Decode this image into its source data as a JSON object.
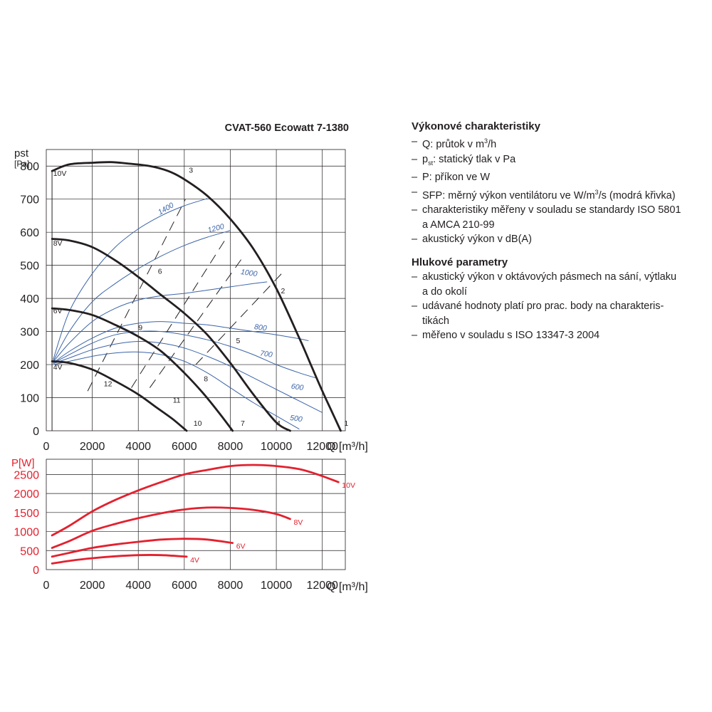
{
  "chart_data": [
    {
      "type": "line",
      "title": "CVAT-560 Ecowatt 7-1380",
      "ylabel": "pst",
      "yunit": "[Pa]",
      "xlabel": "Q [m³/h]",
      "xlim": [
        0,
        13000
      ],
      "ylim": [
        0,
        850
      ],
      "xticks": [
        0,
        2000,
        4000,
        6000,
        8000,
        10000,
        12000
      ],
      "yticks": [
        0,
        100,
        200,
        300,
        400,
        500,
        600,
        700,
        800
      ],
      "grid": true,
      "series": [
        {
          "name": "10V",
          "color": "#231f20",
          "x": [
            250,
            1000,
            2000,
            2800,
            3500,
            4500,
            5300,
            6000,
            7000,
            8000,
            9000,
            10000,
            11000,
            11500,
            12000,
            12400,
            12800
          ],
          "y": [
            785,
            805,
            810,
            812,
            808,
            800,
            785,
            760,
            710,
            640,
            550,
            430,
            280,
            200,
            120,
            60,
            0
          ]
        },
        {
          "name": "8V",
          "color": "#231f20",
          "x": [
            250,
            1000,
            2000,
            3000,
            4000,
            5000,
            6000,
            7000,
            8000,
            9000,
            10000,
            10600
          ],
          "y": [
            580,
            575,
            555,
            515,
            465,
            410,
            355,
            290,
            205,
            110,
            25,
            0
          ]
        },
        {
          "name": "6V",
          "color": "#231f20",
          "x": [
            250,
            1000,
            2000,
            3000,
            4000,
            5000,
            6000,
            6800,
            7500,
            8100
          ],
          "y": [
            370,
            365,
            350,
            320,
            285,
            240,
            175,
            115,
            55,
            0
          ]
        },
        {
          "name": "4V",
          "color": "#231f20",
          "x": [
            250,
            1000,
            2000,
            3000,
            4000,
            4800,
            5500,
            6100
          ],
          "y": [
            210,
            205,
            185,
            150,
            110,
            70,
            35,
            0
          ]
        }
      ],
      "curve_labels": [
        {
          "text": "10V",
          "x": 300,
          "y": 770
        },
        {
          "text": "8V",
          "x": 300,
          "y": 560
        },
        {
          "text": "6V",
          "x": 300,
          "y": 355
        },
        {
          "text": "4V",
          "x": 300,
          "y": 185
        },
        {
          "text": "1",
          "x": 12950,
          "y": 15
        },
        {
          "text": "2",
          "x": 10200,
          "y": 415
        },
        {
          "text": "3",
          "x": 6200,
          "y": 780
        },
        {
          "text": "4",
          "x": 10000,
          "y": 15
        },
        {
          "text": "5",
          "x": 8250,
          "y": 265
        },
        {
          "text": "6",
          "x": 4850,
          "y": 475
        },
        {
          "text": "7",
          "x": 8450,
          "y": 15
        },
        {
          "text": "8",
          "x": 6850,
          "y": 150
        },
        {
          "text": "9",
          "x": 4000,
          "y": 305
        },
        {
          "text": "10",
          "x": 6400,
          "y": 15
        },
        {
          "text": "11",
          "x": 5500,
          "y": 85
        },
        {
          "text": "12",
          "x": 2500,
          "y": 135
        }
      ],
      "sfp_series": [
        {
          "name": "1400",
          "color": "#3b64a8",
          "x": [
            300,
            1000,
            2000,
            3000,
            4000,
            5000,
            6000,
            7000
          ],
          "y": [
            215,
            360,
            475,
            555,
            610,
            650,
            680,
            702
          ]
        },
        {
          "name": "1200",
          "color": "#3b64a8",
          "x": [
            300,
            1000,
            2000,
            3000,
            4000,
            5000,
            6000,
            7000,
            8000
          ],
          "y": [
            210,
            300,
            390,
            445,
            490,
            528,
            560,
            585,
            605
          ]
        },
        {
          "name": "1000",
          "color": "#3b64a8",
          "x": [
            300,
            1000,
            2000,
            3000,
            4000,
            5000,
            6000,
            7000,
            8000,
            9000,
            9600
          ],
          "y": [
            208,
            265,
            330,
            370,
            395,
            408,
            415,
            425,
            435,
            445,
            450
          ]
        },
        {
          "name": "800",
          "color": "#3b64a8",
          "x": [
            300,
            1000,
            2000,
            3000,
            4000,
            5000,
            6000,
            7000,
            8000,
            9000,
            10000,
            11000,
            11400
          ],
          "y": [
            205,
            240,
            280,
            310,
            325,
            330,
            325,
            320,
            310,
            300,
            290,
            278,
            272
          ]
        },
        {
          "name": "700",
          "color": "#3b64a8",
          "x": [
            300,
            1000,
            2000,
            3000,
            4000,
            5000,
            6000,
            7000,
            8000,
            9000,
            10000,
            11000,
            11700
          ],
          "y": [
            205,
            230,
            265,
            290,
            300,
            300,
            290,
            275,
            255,
            230,
            200,
            175,
            160
          ]
        },
        {
          "name": "600",
          "color": "#3b64a8",
          "x": [
            300,
            1000,
            2000,
            3000,
            4000,
            5000,
            6000,
            7000,
            8000,
            9000,
            10000,
            11000,
            12000
          ],
          "y": [
            203,
            220,
            245,
            262,
            270,
            265,
            250,
            225,
            195,
            160,
            125,
            90,
            55
          ]
        },
        {
          "name": "500",
          "color": "#3b64a8",
          "x": [
            300,
            1000,
            2000,
            3000,
            4000,
            5000,
            6000,
            7000,
            8000,
            9000,
            10000,
            11000
          ],
          "y": [
            200,
            210,
            225,
            235,
            238,
            230,
            210,
            175,
            130,
            85,
            45,
            5
          ]
        }
      ],
      "sfp_labels": [
        {
          "text": "1400",
          "x": 5250,
          "y": 665
        },
        {
          "text": "1200",
          "x": 7400,
          "y": 605
        },
        {
          "text": "1000",
          "x": 8800,
          "y": 470
        },
        {
          "text": "800",
          "x": 9300,
          "y": 305
        },
        {
          "text": "700",
          "x": 9550,
          "y": 225
        },
        {
          "text": "600",
          "x": 10900,
          "y": 125
        },
        {
          "text": "500",
          "x": 10850,
          "y": 30
        }
      ],
      "system_series": [
        {
          "from": [
            1800,
            120
          ],
          "to": [
            6050,
            700
          ]
        },
        {
          "from": [
            3700,
            130
          ],
          "to": [
            7800,
            580
          ]
        },
        {
          "from": [
            4500,
            130
          ],
          "to": [
            8600,
            530
          ]
        },
        {
          "from": [
            6500,
            200
          ],
          "to": [
            10300,
            480
          ]
        }
      ]
    },
    {
      "type": "line",
      "ylabel": "P[W]",
      "xlabel": "Q [m³/h]",
      "xlim": [
        0,
        13000
      ],
      "ylim": [
        0,
        2900
      ],
      "xticks": [
        0,
        2000,
        4000,
        6000,
        8000,
        10000,
        12000
      ],
      "yticks": [
        0,
        500,
        1000,
        1500,
        2000,
        2500
      ],
      "grid": true,
      "series": [
        {
          "name": "10V",
          "color": "#e3212e",
          "x": [
            250,
            1000,
            2000,
            3000,
            4000,
            5000,
            6000,
            7000,
            8000,
            9000,
            10000,
            11000,
            11800,
            12700
          ],
          "y": [
            900,
            1150,
            1530,
            1830,
            2080,
            2300,
            2500,
            2620,
            2720,
            2750,
            2720,
            2640,
            2500,
            2300
          ]
        },
        {
          "name": "8V",
          "color": "#e3212e",
          "x": [
            250,
            1000,
            2000,
            3000,
            4000,
            5000,
            6000,
            7000,
            8000,
            9000,
            10000,
            10600
          ],
          "y": [
            570,
            750,
            1020,
            1200,
            1350,
            1480,
            1580,
            1630,
            1620,
            1570,
            1460,
            1330
          ]
        },
        {
          "name": "6V",
          "color": "#e3212e",
          "x": [
            250,
            1000,
            2000,
            3000,
            4000,
            5000,
            6000,
            7000,
            8100
          ],
          "y": [
            340,
            440,
            570,
            660,
            730,
            790,
            810,
            790,
            700
          ]
        },
        {
          "name": "4V",
          "color": "#e3212e",
          "x": [
            250,
            1000,
            2000,
            3000,
            4000,
            5000,
            6100
          ],
          "y": [
            160,
            230,
            300,
            350,
            380,
            380,
            340
          ]
        }
      ]
    }
  ],
  "notes": {
    "perf_heading": "Výkonové charakteristiky",
    "perf_items": [
      {
        "lead": "Q: průtok v m",
        "sup": "3",
        "rest": "/h"
      },
      {
        "lead": "p",
        "sub": "st",
        "rest": ": statický tlak v Pa"
      },
      {
        "lead": "P: příkon ve W"
      },
      {
        "lead": "SFP: měrný výkon ventilátoru ve W/m",
        "sup": "3",
        "rest": "/s (modrá křivka)"
      },
      {
        "lead": "charakteristiky měřeny v souladu se standardy ISO 5801",
        "cont": "a AMCA 210-99"
      },
      {
        "lead": "akustický výkon v dB(A)"
      }
    ],
    "noise_heading": "Hlukové parametry",
    "noise_items": [
      {
        "lead": "akustický výkon v oktávových pásmech na sání, výtlaku",
        "cont": "a do okolí"
      },
      {
        "lead": "udávané hodnoty platí pro prac. body na charakteris-",
        "cont": "tikách"
      },
      {
        "lead": "měřeno v souladu s ISO 13347-3 2004"
      }
    ]
  }
}
